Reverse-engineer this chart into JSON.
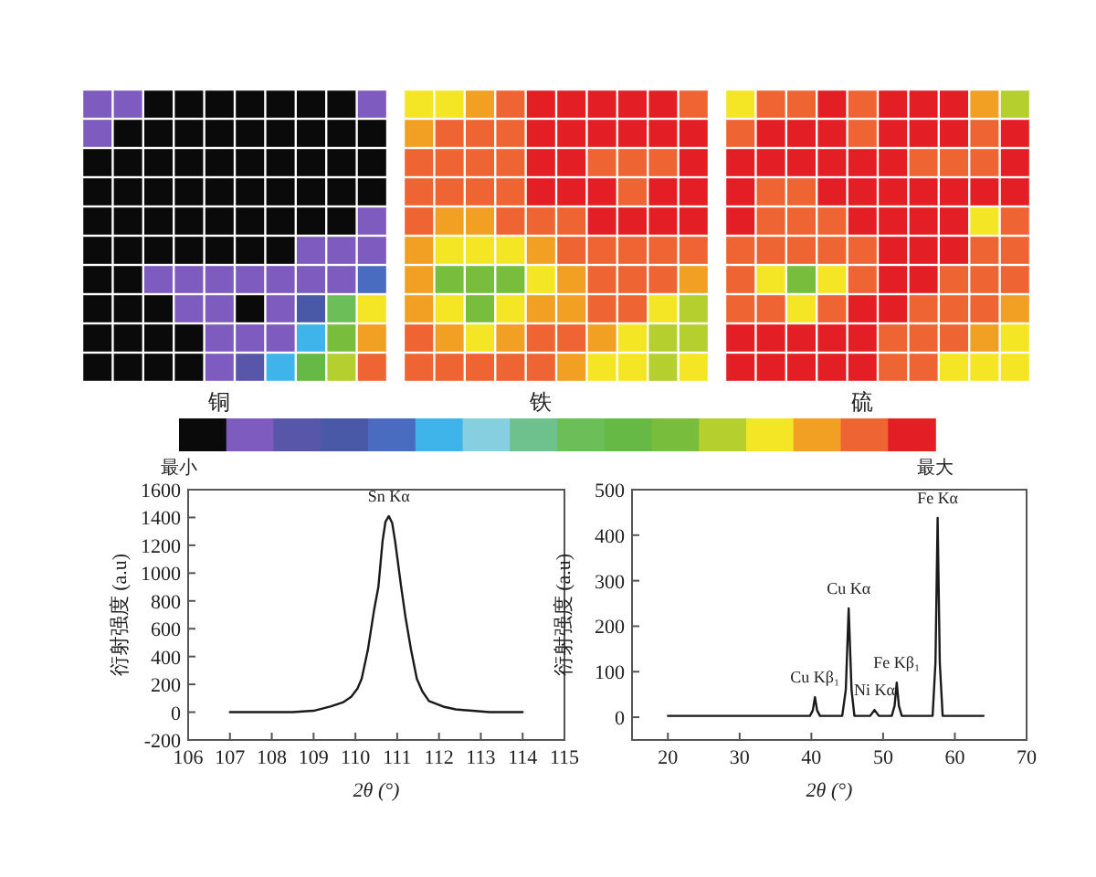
{
  "chart_data": [
    {
      "type": "heatmap",
      "categories": [
        null,
        null,
        null,
        null,
        "铜",
        null,
        null,
        null,
        null,
        null,
        null,
        null,
        null,
        null,
        "铁",
        null,
        null,
        null,
        null,
        null,
        null,
        null,
        null,
        null,
        "硫",
        null,
        null,
        null,
        null,
        null
      ],
      "y_categories": [
        null,
        null,
        null,
        null,
        null,
        null,
        null,
        null,
        null,
        null
      ],
      "cells": [
        [
          1,
          1,
          0,
          0,
          0,
          0,
          0,
          0,
          0,
          1,
          12,
          12,
          13,
          14,
          15,
          15,
          15,
          15,
          15,
          14,
          12,
          14,
          14,
          15,
          14,
          15,
          15,
          15,
          13,
          11
        ],
        [
          1,
          0,
          0,
          0,
          0,
          0,
          0,
          0,
          0,
          0,
          13,
          14,
          14,
          14,
          15,
          15,
          15,
          15,
          15,
          15,
          14,
          15,
          15,
          15,
          14,
          15,
          15,
          15,
          14,
          15
        ],
        [
          0,
          0,
          0,
          0,
          0,
          0,
          0,
          0,
          0,
          0,
          14,
          14,
          14,
          14,
          15,
          15,
          14,
          14,
          14,
          15,
          15,
          15,
          15,
          15,
          15,
          15,
          14,
          14,
          14,
          15
        ],
        [
          0,
          0,
          0,
          0,
          0,
          0,
          0,
          0,
          0,
          0,
          14,
          14,
          14,
          14,
          15,
          15,
          15,
          14,
          15,
          15,
          15,
          14,
          14,
          15,
          15,
          15,
          15,
          15,
          15,
          15
        ],
        [
          0,
          0,
          0,
          0,
          0,
          0,
          0,
          0,
          0,
          1,
          14,
          13,
          13,
          14,
          14,
          14,
          15,
          15,
          15,
          15,
          15,
          14,
          14,
          14,
          15,
          15,
          15,
          15,
          12,
          14
        ],
        [
          0,
          0,
          0,
          0,
          0,
          0,
          0,
          1,
          1,
          1,
          13,
          12,
          12,
          12,
          13,
          14,
          14,
          14,
          14,
          14,
          14,
          14,
          14,
          14,
          14,
          15,
          15,
          15,
          14,
          14
        ],
        [
          0,
          0,
          1,
          1,
          1,
          1,
          1,
          1,
          1,
          4,
          13,
          10,
          10,
          10,
          12,
          13,
          14,
          14,
          14,
          13,
          14,
          12,
          10,
          12,
          14,
          15,
          15,
          14,
          14,
          14
        ],
        [
          0,
          0,
          0,
          1,
          1,
          0,
          1,
          3,
          8,
          12,
          13,
          12,
          10,
          12,
          13,
          13,
          14,
          14,
          12,
          11,
          14,
          14,
          12,
          14,
          15,
          15,
          14,
          14,
          14,
          13
        ],
        [
          0,
          0,
          0,
          0,
          1,
          1,
          1,
          5,
          10,
          13,
          14,
          13,
          12,
          13,
          14,
          14,
          13,
          12,
          11,
          11,
          15,
          15,
          15,
          15,
          15,
          14,
          14,
          14,
          13,
          12
        ],
        [
          0,
          0,
          0,
          0,
          1,
          2,
          5,
          9,
          11,
          14,
          14,
          14,
          14,
          14,
          14,
          13,
          12,
          12,
          11,
          12,
          15,
          15,
          15,
          15,
          15,
          14,
          14,
          12,
          12,
          12
        ]
      ],
      "clim": [
        0,
        16
      ],
      "cticks": [
        {
          "value": 0,
          "label": "最小"
        },
        {
          "value": 16,
          "label": "最大"
        }
      ],
      "colors": [
        "#0a0a0a",
        "#7e5bbf",
        "#5856a8",
        "#4a58a8",
        "#4a6cc0",
        "#3fb4ea",
        "#86cfe0",
        "#6ec08c",
        "#6cbf58",
        "#66b944",
        "#78bd3c",
        "#b4cf2e",
        "#f4e624",
        "#f2a024",
        "#ef6433",
        "#e31e24"
      ]
    },
    {
      "type": "line",
      "xlabel": "2θ (°)",
      "ylabel": "衍射强度 (a.u)",
      "color": "#1a1a1a",
      "x": [
        107,
        108,
        108.5,
        109,
        109.4,
        109.7,
        109.9,
        110.05,
        110.15,
        110.3,
        110.45,
        110.55,
        110.65,
        110.72,
        110.8,
        110.88,
        110.95,
        111.1,
        111.2,
        111.33,
        111.47,
        111.6,
        111.76,
        112.1,
        112.4,
        112.8,
        113.2,
        114
      ],
      "values": [
        0,
        0,
        0,
        10,
        40,
        70,
        110,
        170,
        240,
        450,
        740,
        900,
        1230,
        1370,
        1410,
        1360,
        1230,
        890,
        680,
        450,
        240,
        150,
        80,
        40,
        20,
        10,
        0,
        0
      ],
      "xlim": [
        106,
        115
      ],
      "xticks": [
        106,
        107,
        108,
        109,
        110,
        111,
        112,
        113,
        114,
        115
      ],
      "ylim": [
        -200,
        1600
      ],
      "yticks": [
        -200,
        0,
        200,
        400,
        600,
        800,
        1000,
        1200,
        1400,
        1600
      ],
      "annotations": [
        {
          "text": "Sn Kα",
          "x": 110.8,
          "y": 1410
        }
      ]
    },
    {
      "type": "line",
      "xlabel": "2θ (°)",
      "ylabel": "衍射强度 (a.u)",
      "color": "#1a1a1a",
      "x": [
        20,
        30,
        39.8,
        40.2,
        40.5,
        40.8,
        41.2,
        44.3,
        44.8,
        45.2,
        45.6,
        46,
        48.2,
        48.8,
        49.4,
        51.2,
        51.6,
        51.9,
        52.2,
        52.6,
        56.9,
        57.3,
        57.6,
        57.9,
        58.3,
        64
      ],
      "values": [
        3,
        3,
        3,
        15,
        44,
        15,
        3,
        3,
        60,
        239,
        60,
        3,
        3,
        16,
        3,
        3,
        25,
        76,
        25,
        3,
        3,
        120,
        438,
        120,
        3,
        3
      ],
      "xlim": [
        15,
        70
      ],
      "xticks": [
        20,
        30,
        40,
        50,
        60,
        70
      ],
      "ylim": [
        -50,
        500
      ],
      "yticks": [
        0,
        100,
        200,
        300,
        400,
        500
      ],
      "annotations": [
        {
          "text": "Cu Kβ₁",
          "x": 40.5,
          "y": 44
        },
        {
          "text": "Cu Kα",
          "x": 45.2,
          "y": 239
        },
        {
          "text": "Ni Kα",
          "x": 48.8,
          "y": 16
        },
        {
          "text": "Fe Kβ₁",
          "x": 51.9,
          "y": 76
        },
        {
          "text": "Fe Kα",
          "x": 57.6,
          "y": 438
        }
      ]
    }
  ]
}
